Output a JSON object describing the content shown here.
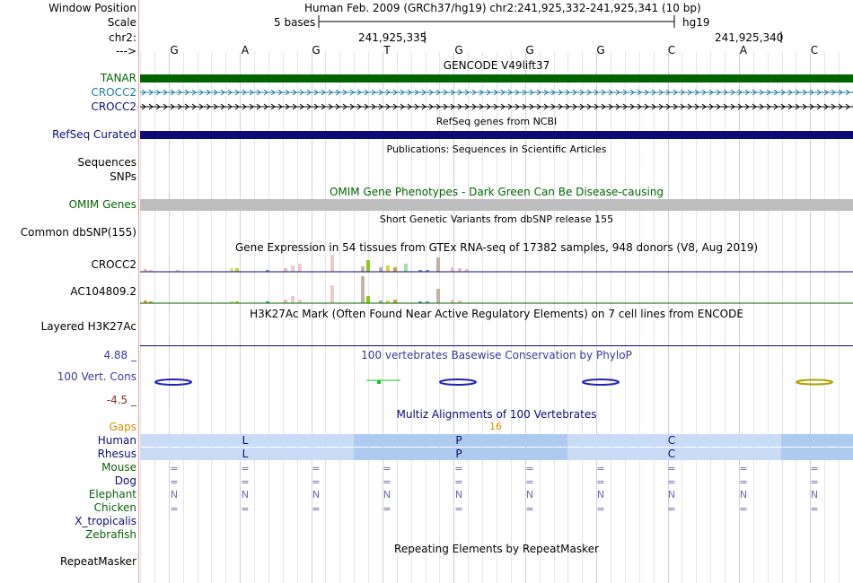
{
  "labels": {
    "window_position": "Window Position",
    "scale": "Scale",
    "chr": "chr2:",
    "strand": "--->",
    "tanar": "TANAR",
    "crocc2_a": "CROCC2",
    "crocc2_b": "CROCC2",
    "refseq": "RefSeq Curated",
    "sequences": "Sequences",
    "snps": "SNPs",
    "omim": "OMIM Genes",
    "dbsnp": "Common dbSNP(155)",
    "gtex_crocc2": "CROCC2",
    "gtex_ac": "AC104809.2",
    "h3k27ac": "Layered H3K27Ac",
    "cons_max": "4.88 _",
    "cons": "100 Vert. Cons",
    "cons_min": "-4.5 _",
    "gaps": "Gaps",
    "human": "Human",
    "rhesus": "Rhesus",
    "mouse": "Mouse",
    "dog": "Dog",
    "elephant": "Elephant",
    "chicken": "Chicken",
    "xtrop": "X_tropicalis",
    "zebrafish": "Zebrafish",
    "repeatmasker": "RepeatMasker"
  },
  "ruler": {
    "position_text": "Human Feb. 2009 (GRCh37/hg19)   chr2:241,925,332-241,925,341 (10 bp)",
    "scale_text": "5 bases",
    "assembly": "hg19",
    "coord1": "241,925,335",
    "coord2": "241,925,340"
  },
  "bases": [
    "G",
    "A",
    "G",
    "T",
    "G",
    "G",
    "G",
    "C",
    "A",
    "C"
  ],
  "titles": {
    "gencode": "GENCODE V49lift37",
    "refseq": "RefSeq genes from NCBI",
    "pubs": "Publications: Sequences in Scientific Articles",
    "omim": "OMIM Gene Phenotypes - Dark Green Can Be Disease-causing",
    "dbsnp": "Short Genetic Variants from dbSNP release 155",
    "gtex": "Gene Expression in 54 tissues from GTEx RNA-seq of 17382 samples, 948 donors (V8, Aug 2019)",
    "h3k27ac": "H3K27Ac Mark (Often Found Near Active Regulatory Elements) on 7 cell lines from ENCODE",
    "cons": "100 vertebrates Basewise Conservation by PhyloP",
    "multiz": "Multiz Alignments of 100 Vertebrates",
    "gap_count": "16",
    "repeat": "Repeating Elements by RepeatMasker"
  },
  "alignment": {
    "human": [
      "L",
      "P",
      "C"
    ],
    "rhesus": [
      "L",
      "P",
      "C"
    ],
    "mouse_symbol": "=",
    "dog_symbol": "=",
    "elephant_symbol": "N",
    "chicken_symbol": "="
  },
  "colors": {
    "tanar": "#006400",
    "refseq": "#0c0c78",
    "omim": "#bdbdbd",
    "codon_light": "#c8dcf5",
    "codon_dark": "#aecbef"
  }
}
